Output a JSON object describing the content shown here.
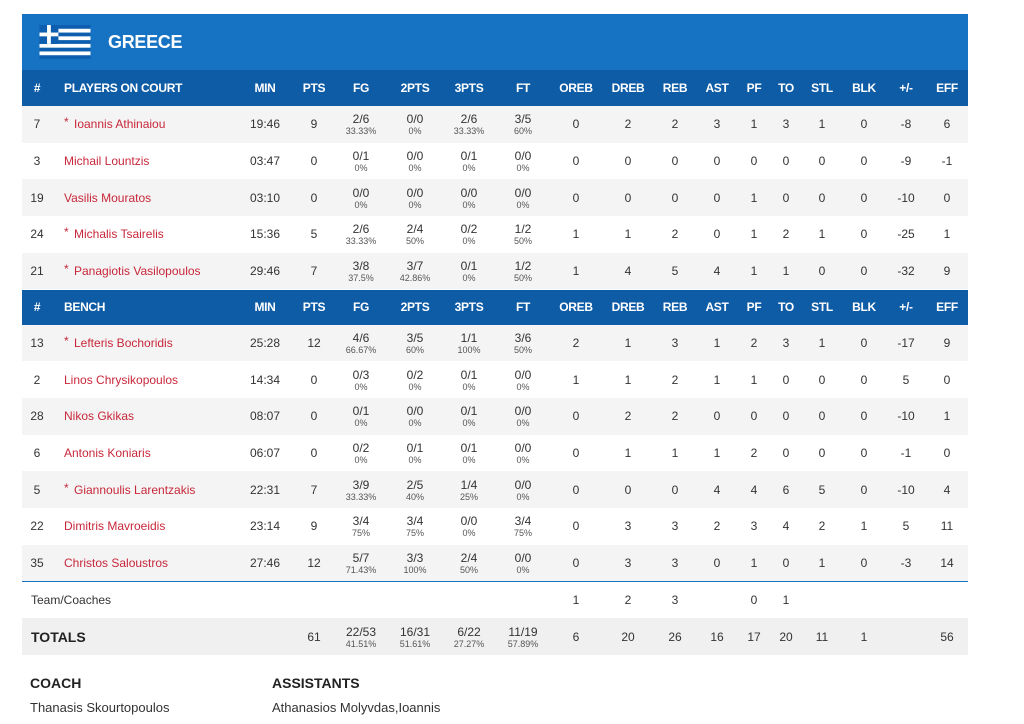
{
  "team": {
    "name": "GREECE"
  },
  "columns": [
    "#",
    "MIN",
    "PTS",
    "FG",
    "2PTS",
    "3PTS",
    "FT",
    "OREB",
    "DREB",
    "REB",
    "AST",
    "PF",
    "TO",
    "STL",
    "BLK",
    "+/-",
    "EFF"
  ],
  "sections": [
    {
      "title": "PLAYERS ON COURT",
      "rows": [
        {
          "number": 7,
          "star": "*",
          "name": "Ioannis Athinaiou",
          "stats": [
            "19:46",
            9,
            [
              "2/6",
              "33.33%"
            ],
            [
              "0/0",
              "0%"
            ],
            [
              "2/6",
              "33.33%"
            ],
            [
              "3/5",
              "60%"
            ],
            0,
            2,
            2,
            3,
            1,
            3,
            1,
            0,
            -8,
            6
          ]
        },
        {
          "number": 3,
          "name": "Michail Lountzis",
          "stats": [
            "03:47",
            0,
            [
              "0/1",
              "0%"
            ],
            [
              "0/0",
              "0%"
            ],
            [
              "0/1",
              "0%"
            ],
            [
              "0/0",
              "0%"
            ],
            0,
            0,
            0,
            0,
            0,
            0,
            0,
            0,
            -9,
            -1
          ]
        },
        {
          "number": 19,
          "name": "Vasilis Mouratos",
          "stats": [
            "03:10",
            0,
            [
              "0/0",
              "0%"
            ],
            [
              "0/0",
              "0%"
            ],
            [
              "0/0",
              "0%"
            ],
            [
              "0/0",
              "0%"
            ],
            0,
            0,
            0,
            0,
            1,
            0,
            0,
            0,
            -10,
            0
          ]
        },
        {
          "number": 24,
          "star": "*",
          "name": "Michalis Tsairelis",
          "stats": [
            "15:36",
            5,
            [
              "2/6",
              "33.33%"
            ],
            [
              "2/4",
              "50%"
            ],
            [
              "0/2",
              "0%"
            ],
            [
              "1/2",
              "50%"
            ],
            1,
            1,
            2,
            0,
            1,
            2,
            1,
            0,
            -25,
            1
          ]
        },
        {
          "number": 21,
          "star": "*",
          "name": "Panagiotis Vasilopoulos",
          "stats": [
            "29:46",
            7,
            [
              "3/8",
              "37.5%"
            ],
            [
              "3/7",
              "42.86%"
            ],
            [
              "0/1",
              "0%"
            ],
            [
              "1/2",
              "50%"
            ],
            1,
            4,
            5,
            4,
            1,
            1,
            0,
            0,
            -32,
            9
          ]
        }
      ]
    },
    {
      "title": "BENCH",
      "rows": [
        {
          "number": 13,
          "star": "*",
          "name": "Lefteris Bochoridis",
          "stats": [
            "25:28",
            12,
            [
              "4/6",
              "66.67%"
            ],
            [
              "3/5",
              "60%"
            ],
            [
              "1/1",
              "100%"
            ],
            [
              "3/6",
              "50%"
            ],
            2,
            1,
            3,
            1,
            2,
            3,
            1,
            0,
            -17,
            9
          ]
        },
        {
          "number": 2,
          "name": "Linos Chrysikopoulos",
          "stats": [
            "14:34",
            0,
            [
              "0/3",
              "0%"
            ],
            [
              "0/2",
              "0%"
            ],
            [
              "0/1",
              "0%"
            ],
            [
              "0/0",
              "0%"
            ],
            1,
            1,
            2,
            1,
            1,
            0,
            0,
            0,
            5,
            0
          ]
        },
        {
          "number": 28,
          "name": "Nikos Gkikas",
          "stats": [
            "08:07",
            0,
            [
              "0/1",
              "0%"
            ],
            [
              "0/0",
              "0%"
            ],
            [
              "0/1",
              "0%"
            ],
            [
              "0/0",
              "0%"
            ],
            0,
            2,
            2,
            0,
            0,
            0,
            0,
            0,
            -10,
            1
          ]
        },
        {
          "number": 6,
          "name": "Antonis Koniaris",
          "stats": [
            "06:07",
            0,
            [
              "0/2",
              "0%"
            ],
            [
              "0/1",
              "0%"
            ],
            [
              "0/1",
              "0%"
            ],
            [
              "0/0",
              "0%"
            ],
            0,
            1,
            1,
            1,
            2,
            0,
            0,
            0,
            -1,
            0
          ]
        },
        {
          "number": 5,
          "star": "*",
          "name": "Giannoulis Larentzakis",
          "stats": [
            "22:31",
            7,
            [
              "3/9",
              "33.33%"
            ],
            [
              "2/5",
              "40%"
            ],
            [
              "1/4",
              "25%"
            ],
            [
              "0/0",
              "0%"
            ],
            0,
            0,
            0,
            4,
            4,
            6,
            5,
            0,
            -10,
            4
          ]
        },
        {
          "number": 22,
          "name": "Dimitris Mavroeidis",
          "stats": [
            "23:14",
            9,
            [
              "3/4",
              "75%"
            ],
            [
              "3/4",
              "75%"
            ],
            [
              "0/0",
              "0%"
            ],
            [
              "3/4",
              "75%"
            ],
            0,
            3,
            3,
            2,
            3,
            4,
            2,
            1,
            5,
            11
          ]
        },
        {
          "number": 35,
          "name": "Christos Saloustros",
          "stats": [
            "27:46",
            12,
            [
              "5/7",
              "71.43%"
            ],
            [
              "3/3",
              "100%"
            ],
            [
              "2/4",
              "50%"
            ],
            [
              "0/0",
              "0%"
            ],
            0,
            3,
            3,
            0,
            1,
            0,
            1,
            0,
            -3,
            14
          ]
        }
      ]
    }
  ],
  "team_row": {
    "label": "Team/Coaches",
    "oreb": 1,
    "dreb": 2,
    "reb": 3,
    "pf": 0,
    "to": 1
  },
  "totals": {
    "label": "TOTALS",
    "pts": 61,
    "fg": [
      "22/53",
      "41.51%"
    ],
    "2pts": [
      "16/31",
      "51.61%"
    ],
    "3pts": [
      "6/22",
      "27.27%"
    ],
    "ft": [
      "11/19",
      "57.89%"
    ],
    "oreb": 6,
    "dreb": 20,
    "reb": 26,
    "ast": 16,
    "pf": 17,
    "to": 20,
    "stl": 11,
    "blk": 1,
    "eff": 56
  },
  "staff": {
    "coach_label": "COACH",
    "coach": "Thanasis Skourtopoulos",
    "assistants_label": "ASSISTANTS",
    "assistants": "Athanasios Molyvdas,Ioannis"
  }
}
